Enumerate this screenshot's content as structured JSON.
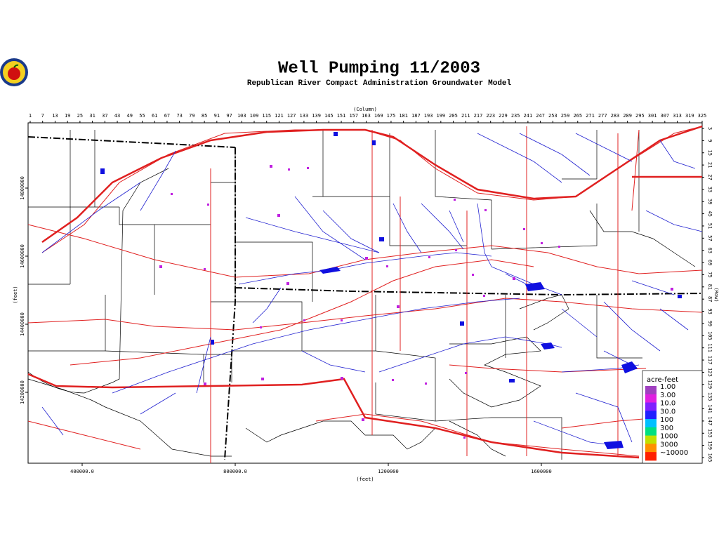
{
  "header": {
    "title": "Well Pumping 11/2003",
    "subtitle": "Republican River Compact Administration Groundwater Model"
  },
  "axes": {
    "column_label": "(Column)",
    "columns": [
      1,
      7,
      13,
      19,
      25,
      31,
      37,
      43,
      49,
      55,
      61,
      67,
      73,
      79,
      85,
      91,
      97,
      103,
      109,
      115,
      121,
      127,
      133,
      139,
      145,
      151,
      157,
      163,
      169,
      175,
      181,
      187,
      193,
      199,
      205,
      211,
      217,
      223,
      229,
      235,
      241,
      247,
      253,
      259,
      265,
      271,
      277,
      283,
      289,
      295,
      301,
      307,
      313,
      319,
      325
    ],
    "row_label": "(Row)",
    "rows": [
      3,
      9,
      15,
      21,
      27,
      33,
      39,
      45,
      51,
      57,
      63,
      69,
      75,
      81,
      87,
      93,
      99,
      105,
      111,
      117,
      123,
      129,
      135,
      141,
      147,
      153,
      159,
      165
    ],
    "x_feet_label": "(feet)",
    "x_feet": [
      {
        "value": 400000,
        "label": "400000.0"
      },
      {
        "value": 800000,
        "label": "800000.0"
      },
      1200000,
      1600000
    ],
    "y_feet_label": "(feet)",
    "y_feet": [
      14800000,
      14600000,
      14400000,
      14200000
    ]
  },
  "legend": {
    "title": "acre-feet",
    "labels": [
      "1.00",
      "3.00",
      "10.0",
      "30.0",
      "100",
      "300",
      "1000",
      "3000",
      "~10000"
    ],
    "colors": [
      "#a040c0",
      "#e020e0",
      "#8020ff",
      "#2020ff",
      "#00c0ff",
      "#00e080",
      "#c0e000",
      "#ff9000",
      "#ff2000"
    ]
  }
}
